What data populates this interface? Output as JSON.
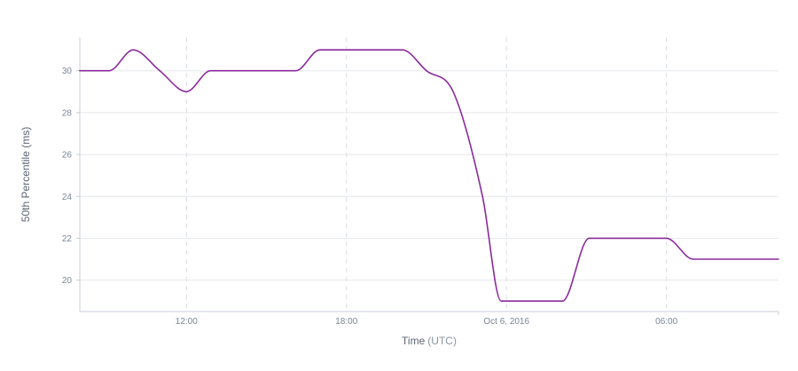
{
  "colors": {
    "series": "#8a2a9c"
  },
  "chart_data": {
    "type": "line",
    "xlabel": "Time",
    "xlabel_unit": "(UTC)",
    "ylabel": "50th Percentile (ms)",
    "ylim": [
      18.5,
      31.6
    ],
    "xlim": [
      "2016-10-05T08:00",
      "2016-10-06T10:12"
    ],
    "y_ticks": [
      20,
      22,
      24,
      26,
      28,
      30
    ],
    "x_ticks": [
      {
        "x": "2016-10-05T12:00",
        "label": "12:00"
      },
      {
        "x": "2016-10-05T18:00",
        "label": "18:00"
      },
      {
        "x": "2016-10-06T00:00",
        "label": "Oct 6, 2016"
      },
      {
        "x": "2016-10-06T06:00",
        "label": "06:00"
      }
    ],
    "grid": true,
    "series": [
      {
        "x": [
          "2016-10-05T08:00",
          "2016-10-05T09:06",
          "2016-10-05T10:00",
          "2016-10-05T11:00",
          "2016-10-05T12:00",
          "2016-10-05T12:54",
          "2016-10-05T16:06",
          "2016-10-05T17:00",
          "2016-10-05T18:00",
          "2016-10-05T19:00",
          "2016-10-05T20:06",
          "2016-10-05T21:00",
          "2016-10-05T22:00",
          "2016-10-05T23:06",
          "2016-10-05T23:48",
          "2016-10-06T02:06",
          "2016-10-06T03:06",
          "2016-10-06T06:00",
          "2016-10-06T07:00",
          "2016-10-06T08:48",
          "2016-10-06T10:12"
        ],
        "values": [
          30,
          30,
          31,
          30,
          29,
          30,
          30,
          31,
          31,
          31,
          31,
          30,
          29,
          24,
          19,
          19,
          22,
          22,
          21,
          21,
          21
        ]
      }
    ]
  }
}
